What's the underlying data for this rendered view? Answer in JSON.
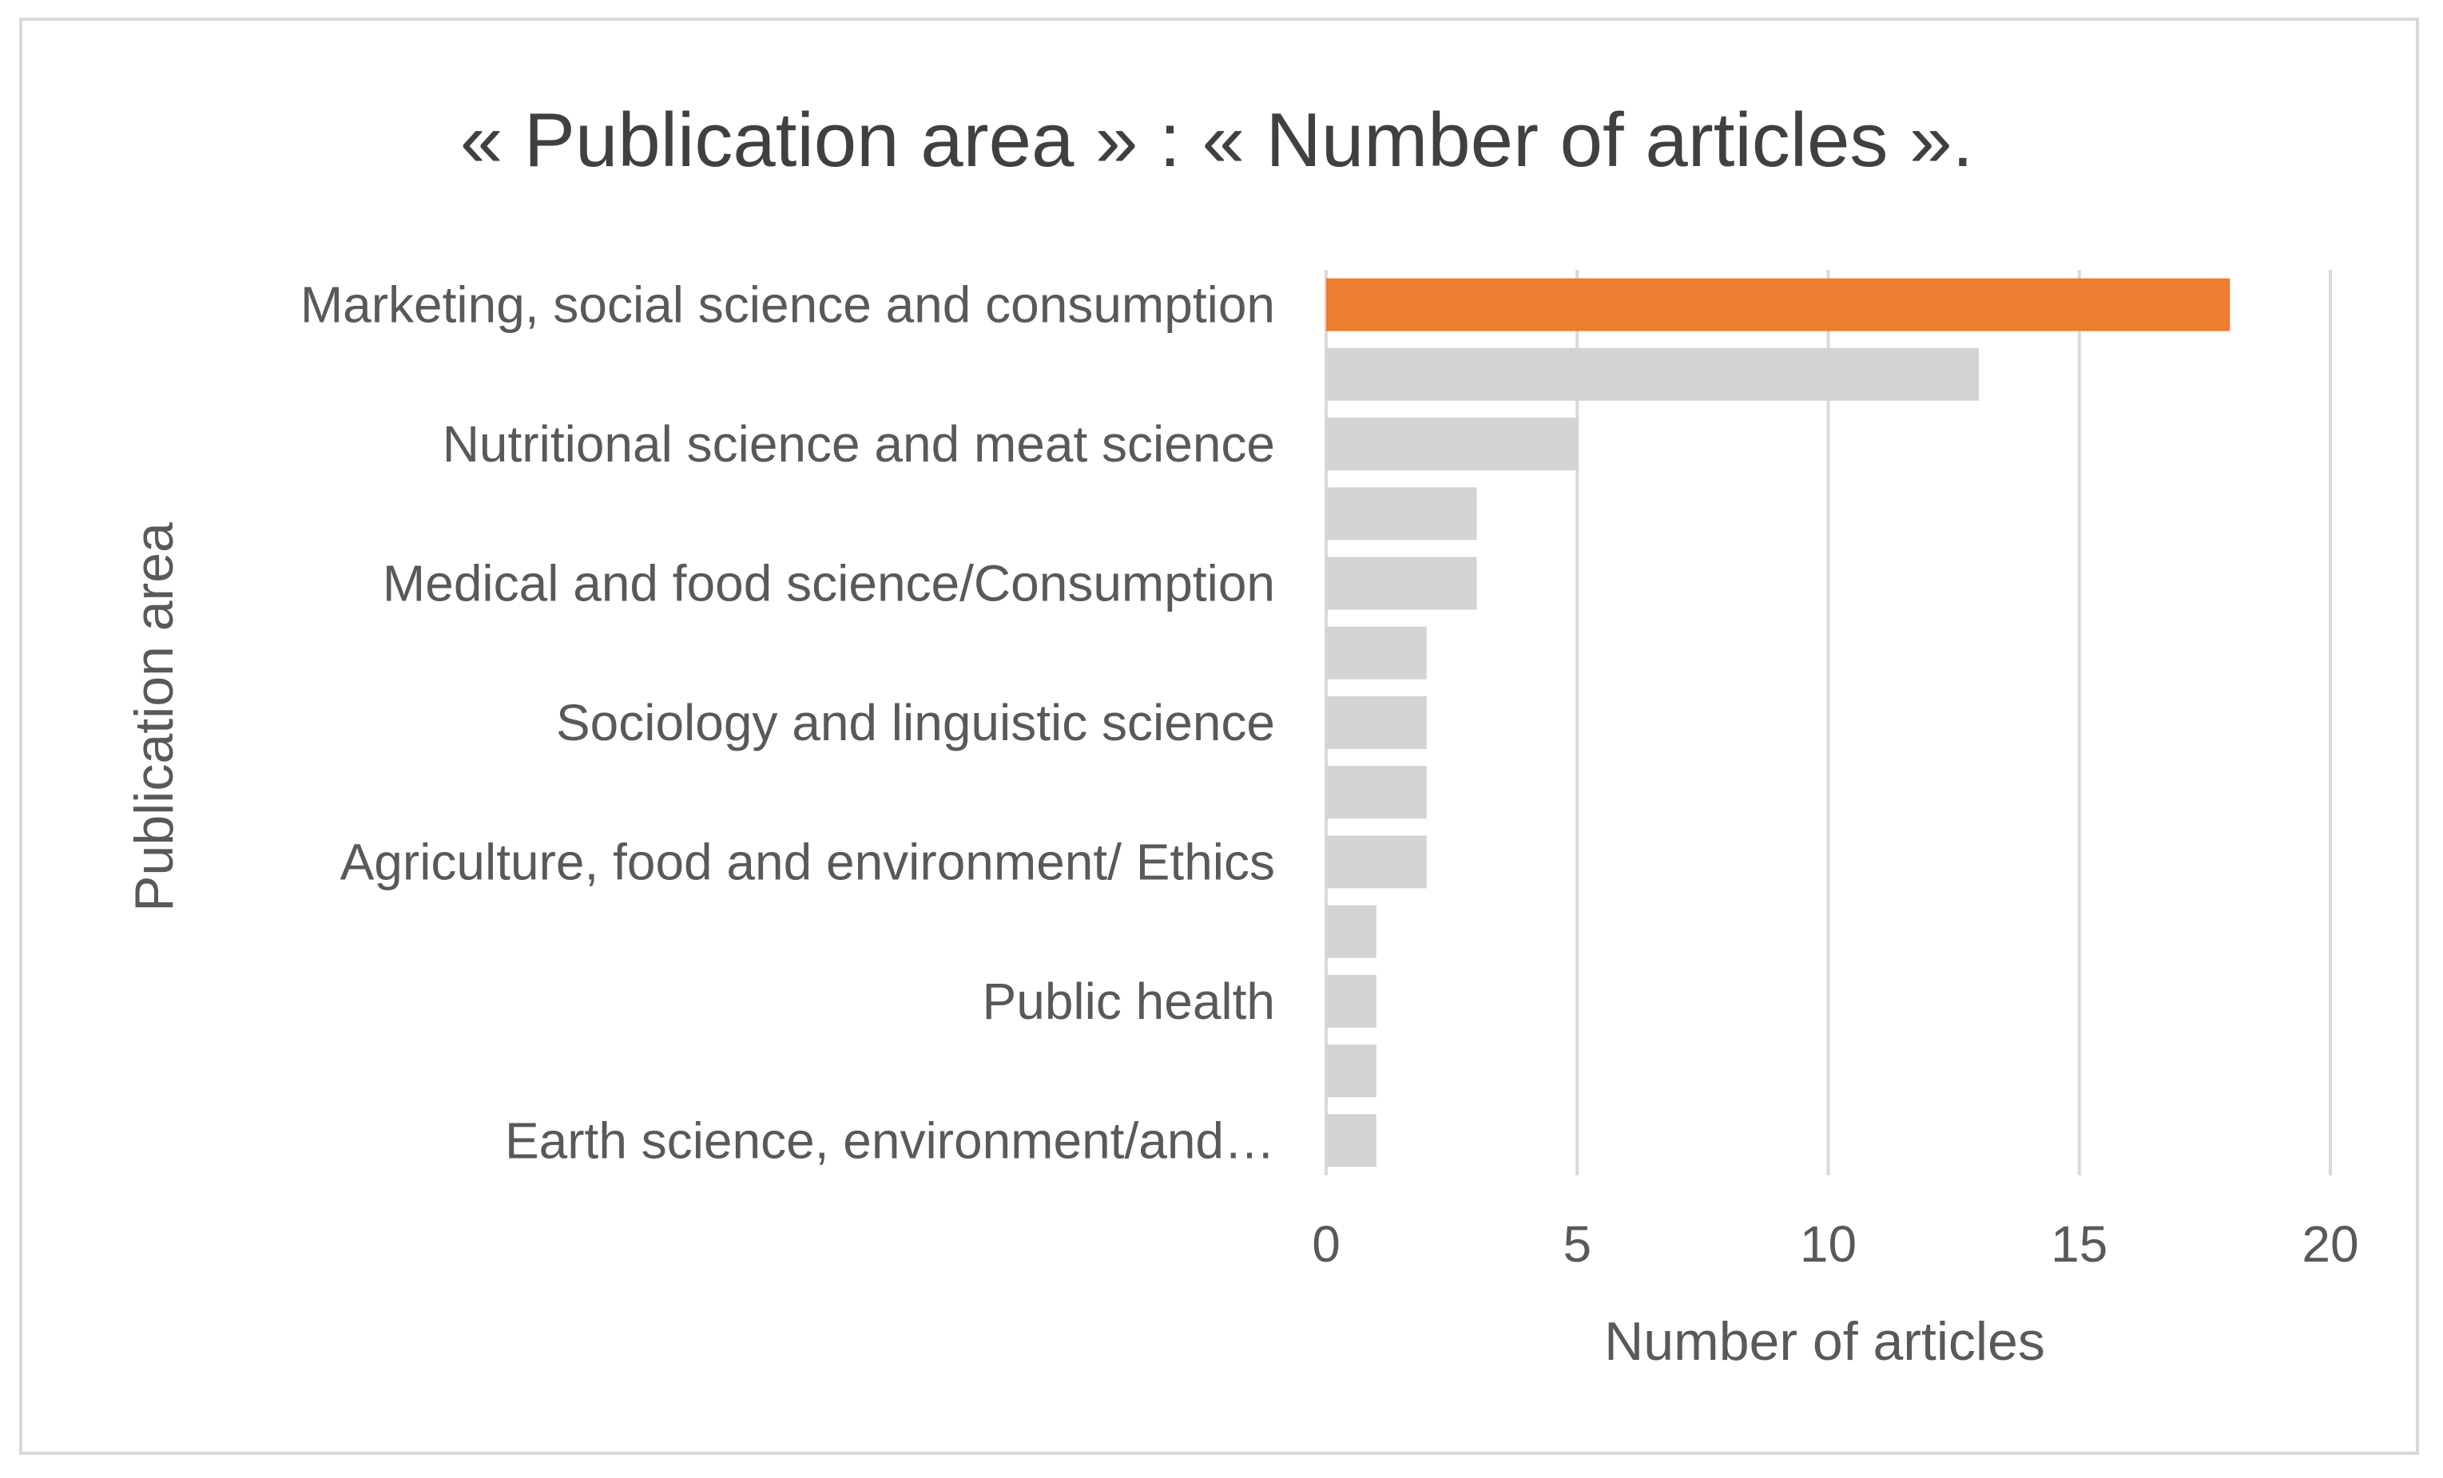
{
  "chart_data": {
    "type": "bar",
    "orientation": "horizontal",
    "title": "« Publication area » : « Number of articles ».",
    "xlabel": "Number of articles",
    "ylabel": "Publication area",
    "xlim": [
      0,
      20
    ],
    "xticks": [
      0,
      5,
      10,
      15,
      20
    ],
    "grid": true,
    "legend": "none",
    "categories": [
      "Marketing, social science and consumption",
      "",
      "Nutritional science and meat science",
      "",
      "Medical and food science/Consumption",
      "",
      "Sociology and linguistic science",
      "",
      "Agriculture, food and environment/ Ethics",
      "",
      "Public health",
      "",
      "Earth science, environment/and…"
    ],
    "values": [
      18,
      13,
      5,
      3,
      3,
      2,
      2,
      2,
      2,
      1,
      1,
      1,
      1
    ],
    "highlight_index": 0,
    "colors": {
      "highlight": "#ed7d31",
      "bar": "#d3d3d3",
      "grid": "#d9d9d9",
      "text": "#595959",
      "title": "#404040"
    }
  }
}
